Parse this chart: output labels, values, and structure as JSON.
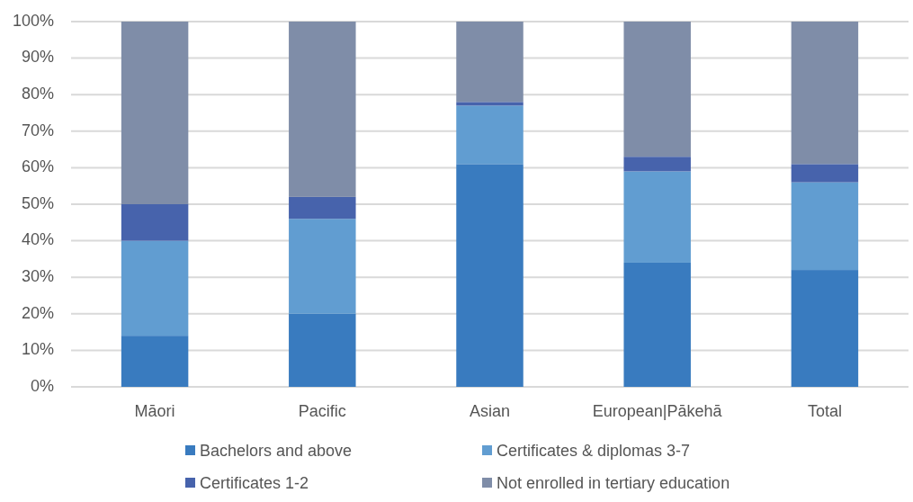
{
  "chart_data": {
    "type": "bar",
    "stacked": true,
    "categories": [
      "Māori",
      "Pacific",
      "Asian",
      "European|Pākehā",
      "Total"
    ],
    "series": [
      {
        "name": "Bachelors and above",
        "color": "#397bbf",
        "values": [
          14,
          20,
          61,
          34,
          32
        ]
      },
      {
        "name": "Certificates & diplomas 3-7",
        "color": "#619dd1",
        "values": [
          26,
          26,
          16,
          25,
          24
        ]
      },
      {
        "name": "Certificates 1-2",
        "color": "#4763ac",
        "values": [
          10,
          6,
          1,
          4,
          5
        ]
      },
      {
        "name": "Not enrolled in tertiary education",
        "color": "#7f8da8",
        "values": [
          50,
          48,
          22,
          37,
          39
        ]
      }
    ],
    "ylim": [
      0,
      100
    ],
    "yticks": [
      {
        "value": 0,
        "label": "0%"
      },
      {
        "value": 10,
        "label": "10%"
      },
      {
        "value": 20,
        "label": "20%"
      },
      {
        "value": 30,
        "label": "30%"
      },
      {
        "value": 40,
        "label": "40%"
      },
      {
        "value": 50,
        "label": "50%"
      },
      {
        "value": 60,
        "label": "60%"
      },
      {
        "value": 70,
        "label": "70%"
      },
      {
        "value": 80,
        "label": "80%"
      },
      {
        "value": 90,
        "label": "90%"
      },
      {
        "value": 100,
        "label": "100%"
      }
    ],
    "grid": "y",
    "legend": "bottom"
  }
}
